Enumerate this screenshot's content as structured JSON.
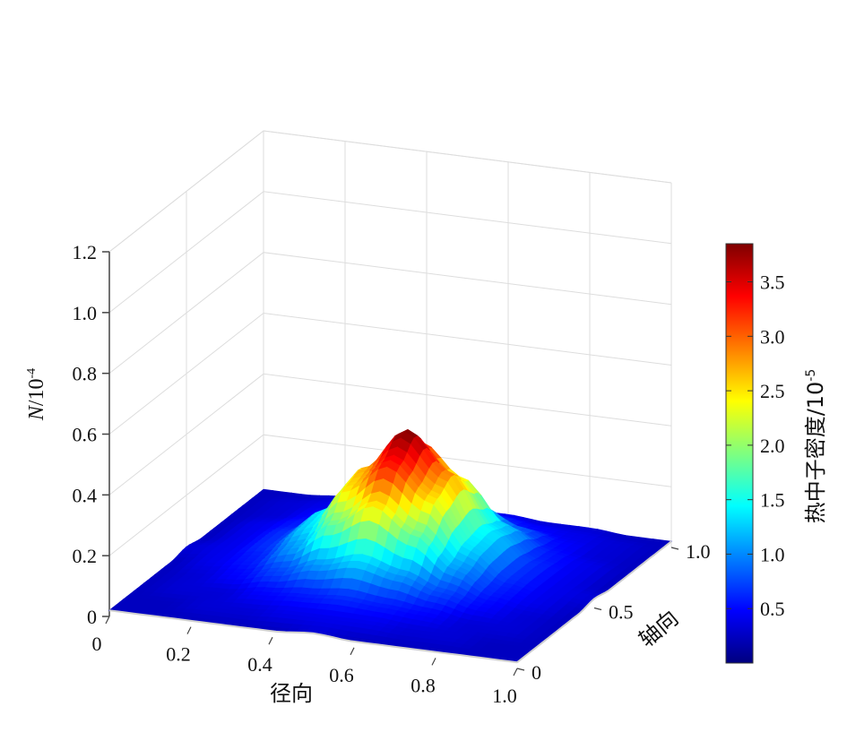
{
  "chart_data": {
    "type": "surface3d",
    "z_axis": {
      "label_symbol": "N",
      "label_unit": "/10",
      "label_exponent": "-4",
      "ticks": [
        "0",
        "0.2",
        "0.4",
        "0.6",
        "0.8",
        "1.0",
        "1.2"
      ],
      "range": [
        0,
        1.2
      ]
    },
    "x_axis": {
      "label": "径向",
      "ticks": [
        "0",
        "0.2",
        "0.4",
        "0.6",
        "0.8",
        "1.0"
      ],
      "range": [
        0,
        1.0
      ]
    },
    "y_axis": {
      "label": "轴向",
      "ticks": [
        "0",
        "0.5",
        "1.0"
      ],
      "range": [
        0,
        1.0
      ]
    },
    "colorbar": {
      "label": "热中子密度/10",
      "label_exponent": "-5",
      "ticks": [
        "0.5",
        "1.0",
        "1.5",
        "2.0",
        "2.5",
        "3.0",
        "3.5"
      ],
      "range": [
        0,
        3.85
      ],
      "colors": [
        "#00007f",
        "#0000ff",
        "#007fff",
        "#00ffff",
        "#7fff7f",
        "#ffff00",
        "#ff7f00",
        "#ff0000",
        "#7f0000"
      ]
    },
    "surface": {
      "x": [
        0,
        0.1,
        0.2,
        0.3,
        0.4,
        0.5,
        0.6,
        0.7,
        0.8,
        0.9,
        1.0
      ],
      "y": [
        0,
        0.1,
        0.2,
        0.3,
        0.4,
        0.5,
        0.6,
        0.7,
        0.8,
        0.9,
        1.0
      ],
      "z": [
        [
          0.02,
          0.02,
          0.02,
          0.02,
          0.02,
          0.03,
          0.02,
          0.02,
          0.02,
          0.02,
          0.02
        ],
        [
          0.02,
          0.02,
          0.03,
          0.03,
          0.04,
          0.04,
          0.04,
          0.03,
          0.03,
          0.02,
          0.02
        ],
        [
          0.02,
          0.03,
          0.03,
          0.05,
          0.06,
          0.07,
          0.06,
          0.05,
          0.03,
          0.03,
          0.02
        ],
        [
          0.02,
          0.03,
          0.05,
          0.08,
          0.12,
          0.15,
          0.12,
          0.08,
          0.05,
          0.03,
          0.02
        ],
        [
          0.02,
          0.04,
          0.06,
          0.12,
          0.22,
          0.3,
          0.22,
          0.12,
          0.06,
          0.04,
          0.02
        ],
        [
          0.03,
          0.04,
          0.07,
          0.15,
          0.3,
          0.4,
          0.3,
          0.15,
          0.07,
          0.04,
          0.03
        ],
        [
          0.02,
          0.04,
          0.07,
          0.16,
          0.32,
          0.46,
          0.34,
          0.16,
          0.07,
          0.04,
          0.02
        ],
        [
          0.02,
          0.04,
          0.06,
          0.14,
          0.27,
          0.38,
          0.28,
          0.14,
          0.06,
          0.04,
          0.02
        ],
        [
          0.02,
          0.03,
          0.05,
          0.09,
          0.15,
          0.2,
          0.15,
          0.09,
          0.05,
          0.03,
          0.02
        ],
        [
          0.02,
          0.03,
          0.04,
          0.05,
          0.07,
          0.08,
          0.07,
          0.05,
          0.04,
          0.03,
          0.02
        ],
        [
          0.02,
          0.02,
          0.03,
          0.03,
          0.04,
          0.04,
          0.04,
          0.03,
          0.03,
          0.02,
          0.02
        ]
      ]
    },
    "grid": true
  }
}
